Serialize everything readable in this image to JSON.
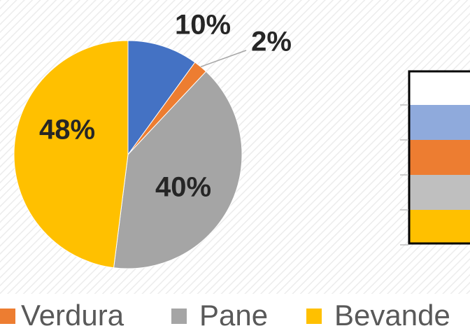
{
  "chart_data": {
    "type": "pie",
    "categories": [
      null,
      "Verdura",
      "Pane",
      "Bevande"
    ],
    "values": [
      10,
      2,
      40,
      48
    ],
    "value_labels": [
      "10%",
      "2%",
      "40%",
      "48%"
    ],
    "colors": [
      "#4472c4",
      "#ed7d31",
      "#a5a5a5",
      "#ffc000"
    ],
    "legend": "bottom"
  }
}
